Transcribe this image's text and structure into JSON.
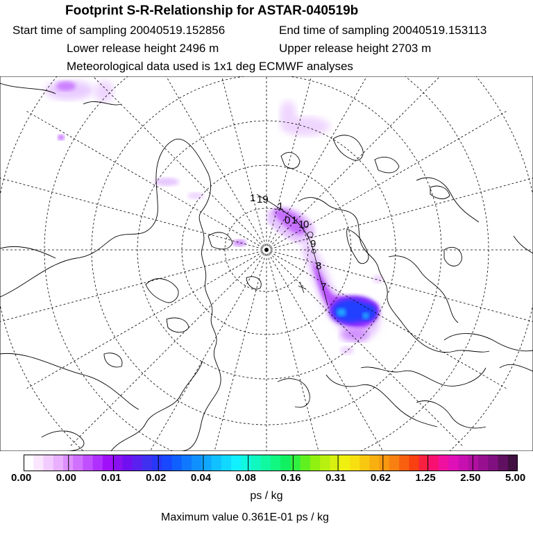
{
  "header": {
    "title": "Footprint S-R-Relationship for ASTAR-040519b",
    "start_time": "Start time of sampling 20040519.152856",
    "end_time": "End time of sampling 20040519.153113",
    "lower_height": "Lower release height 2496 m",
    "upper_height": "Upper release height 2703 m",
    "met_data": "Meteorological data used is 1x1 deg ECMWF analyses"
  },
  "map": {
    "projection": "polar stereographic, North Pole",
    "trajectory_labels": [
      "1",
      "19",
      "1",
      "1",
      "0",
      "1",
      "0",
      "9",
      "8",
      "7"
    ],
    "plume_colors": [
      "#e6c6ff",
      "#c060ff",
      "#7a2cff",
      "#2040ff",
      "#20a8ff"
    ]
  },
  "colorbar": {
    "ticks": [
      "0.00",
      "0.00",
      "0.01",
      "0.02",
      "0.04",
      "0.08",
      "0.16",
      "0.31",
      "0.62",
      "1.25",
      "2.50",
      "5.00"
    ],
    "colors": [
      "#ffffff",
      "#fbe6ff",
      "#f2ccff",
      "#e8b0ff",
      "#de90ff",
      "#d070ff",
      "#c050ff",
      "#b030ff",
      "#a010f8",
      "#8a10f0",
      "#7010f0",
      "#5a20f0",
      "#4030f0",
      "#2838f8",
      "#1848ff",
      "#1060ff",
      "#1078ff",
      "#1090ff",
      "#10a8ff",
      "#10c0ff",
      "#10d8ff",
      "#10f0ff",
      "#10f8e0",
      "#10f8c0",
      "#10f8a0",
      "#10f880",
      "#10f060",
      "#30f040",
      "#60f020",
      "#90f010",
      "#b8f010",
      "#d8f010",
      "#f0f010",
      "#f8e010",
      "#f8c810",
      "#f8b010",
      "#f89810",
      "#f88010",
      "#f86010",
      "#f84010",
      "#f82040",
      "#f81070",
      "#f010a0",
      "#e010b8",
      "#c810b0",
      "#b010a0",
      "#981090",
      "#801080",
      "#601060",
      "#401040"
    ],
    "units": "ps / kg"
  },
  "footer": {
    "max_value": "Maximum value  0.361E-01 ps / kg"
  }
}
